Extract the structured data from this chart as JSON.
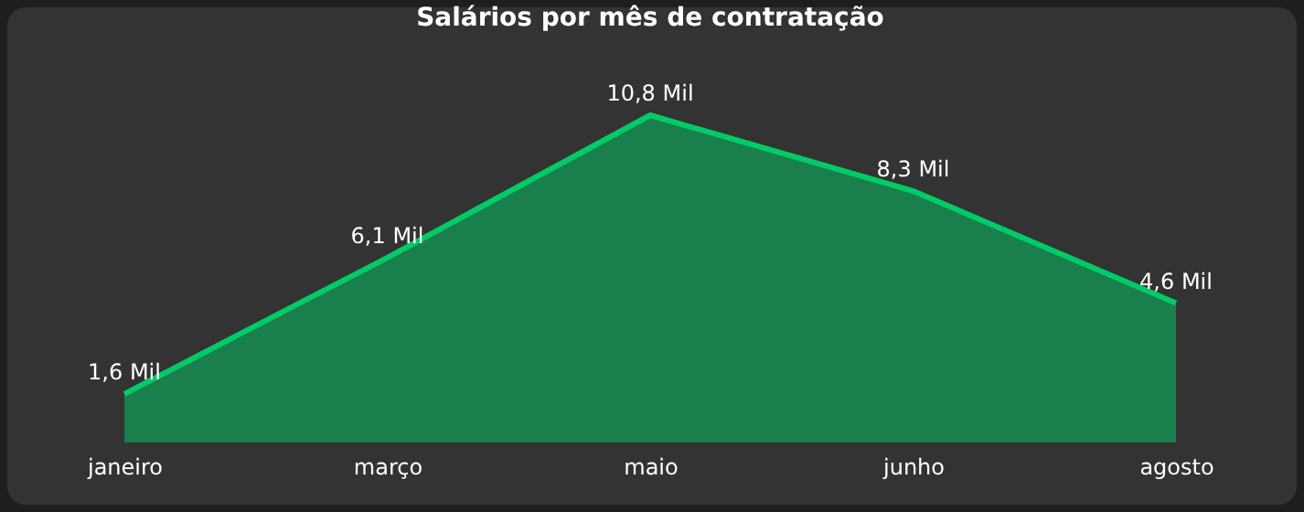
{
  "chart_data": {
    "type": "area",
    "title": "Salários por mês de contratação",
    "categories": [
      "janeiro",
      "março",
      "maio",
      "junho",
      "agosto"
    ],
    "series": [
      {
        "color": "#00cc66",
        "values": [
          1.6,
          6.1,
          10.8,
          8.3,
          4.6
        ],
        "value_labels": [
          "1,6 Mil",
          "6,1 Mil",
          "10,8 Mil",
          "8,3 Mil",
          "4,6 Mil"
        ]
      }
    ],
    "grid": false
  }
}
